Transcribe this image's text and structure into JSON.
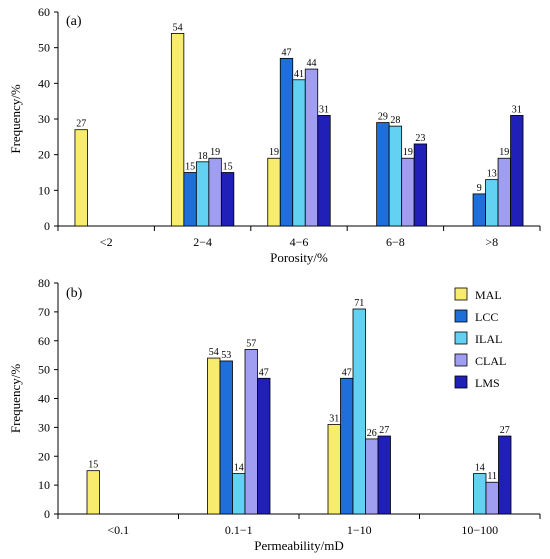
{
  "chart_data": [
    {
      "type": "bar",
      "panel_label": "(a)",
      "xlabel": "Porosity/%",
      "ylabel": "Frequency/%",
      "ylim": [
        0,
        60
      ],
      "yticks": [
        0,
        10,
        20,
        30,
        40,
        50,
        60
      ],
      "categories": [
        "<2",
        "2−4",
        "4−6",
        "6−8",
        ">8"
      ],
      "series": [
        {
          "name": "MAL",
          "color": "#f7ec6e",
          "values": [
            27,
            54,
            19,
            null,
            null
          ]
        },
        {
          "name": "LCC",
          "color": "#1e6fd9",
          "values": [
            null,
            15,
            47,
            29,
            9
          ]
        },
        {
          "name": "ILAL",
          "color": "#62d1f2",
          "values": [
            null,
            18,
            41,
            28,
            13
          ]
        },
        {
          "name": "CLAL",
          "color": "#9f9ef0",
          "values": [
            null,
            19,
            44,
            19,
            19
          ]
        },
        {
          "name": "LMS",
          "color": "#2020b8",
          "values": [
            null,
            15,
            31,
            23,
            31
          ]
        }
      ]
    },
    {
      "type": "bar",
      "panel_label": "(b)",
      "xlabel": "Permeability/mD",
      "ylabel": "Frequency/%",
      "ylim": [
        0,
        80
      ],
      "yticks": [
        0,
        10,
        20,
        30,
        40,
        50,
        60,
        70,
        80
      ],
      "categories": [
        "<0.1",
        "0.1−1",
        "1−10",
        "10−100"
      ],
      "legend_position": "top-right",
      "series": [
        {
          "name": "MAL",
          "color": "#f7ec6e",
          "values": [
            15,
            54,
            31,
            null
          ]
        },
        {
          "name": "LCC",
          "color": "#1e6fd9",
          "values": [
            null,
            53,
            47,
            null
          ]
        },
        {
          "name": "ILAL",
          "color": "#62d1f2",
          "values": [
            null,
            14,
            71,
            14
          ]
        },
        {
          "name": "CLAL",
          "color": "#9f9ef0",
          "values": [
            null,
            57,
            26,
            11
          ]
        },
        {
          "name": "LMS",
          "color": "#2020b8",
          "values": [
            null,
            47,
            27,
            27
          ]
        }
      ]
    }
  ]
}
